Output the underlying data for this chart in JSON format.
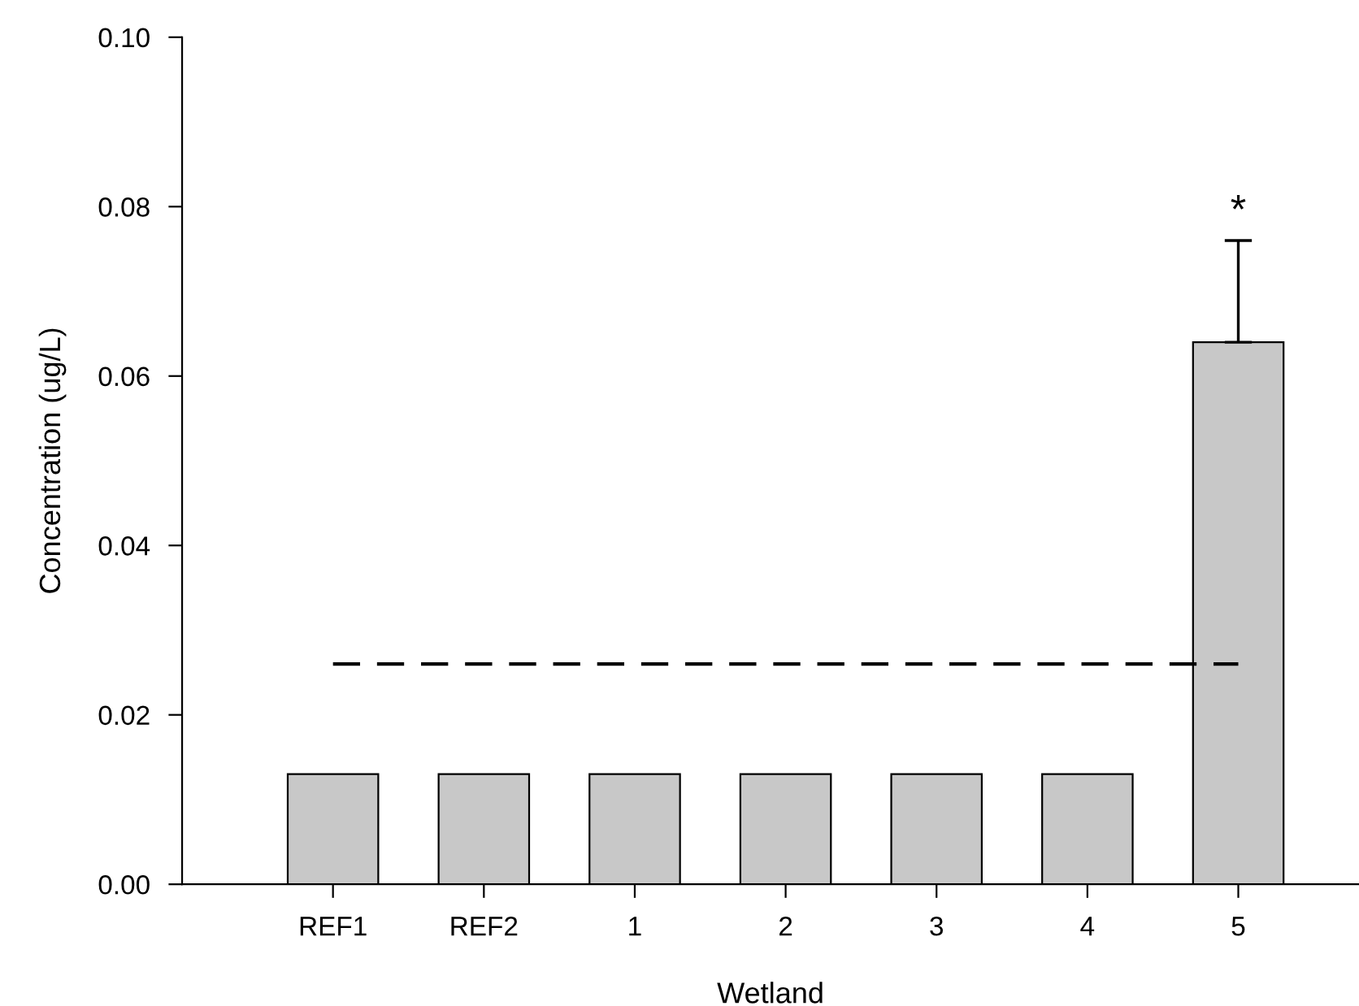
{
  "chart_data": {
    "type": "bar",
    "xlabel": "Wetland",
    "ylabel": "Concentration (ug/L)",
    "categories": [
      "REF1",
      "REF2",
      "1",
      "2",
      "3",
      "4",
      "5"
    ],
    "values": [
      0.013,
      0.013,
      0.013,
      0.013,
      0.013,
      0.013,
      0.064
    ],
    "errors": [
      null,
      null,
      null,
      null,
      null,
      null,
      0.012
    ],
    "color": "#c8c8c8",
    "ylim": [
      0,
      0.1
    ],
    "yticks": [
      {
        "value": 0,
        "label": "0.00"
      },
      {
        "value": 0.02,
        "label": "0.02"
      },
      {
        "value": 0.04,
        "label": "0.04"
      },
      {
        "value": 0.06,
        "label": "0.06"
      },
      {
        "value": 0.08,
        "label": "0.08"
      },
      {
        "value": 0.1,
        "label": "0.10"
      }
    ],
    "ref_lines": [
      {
        "axis": "y",
        "value": 0.026,
        "line_style": "dashed",
        "color": "#000000"
      }
    ],
    "annotations": [
      {
        "text": "*",
        "x": "5",
        "y": 0.076
      }
    ],
    "grid": false,
    "legend": false
  }
}
